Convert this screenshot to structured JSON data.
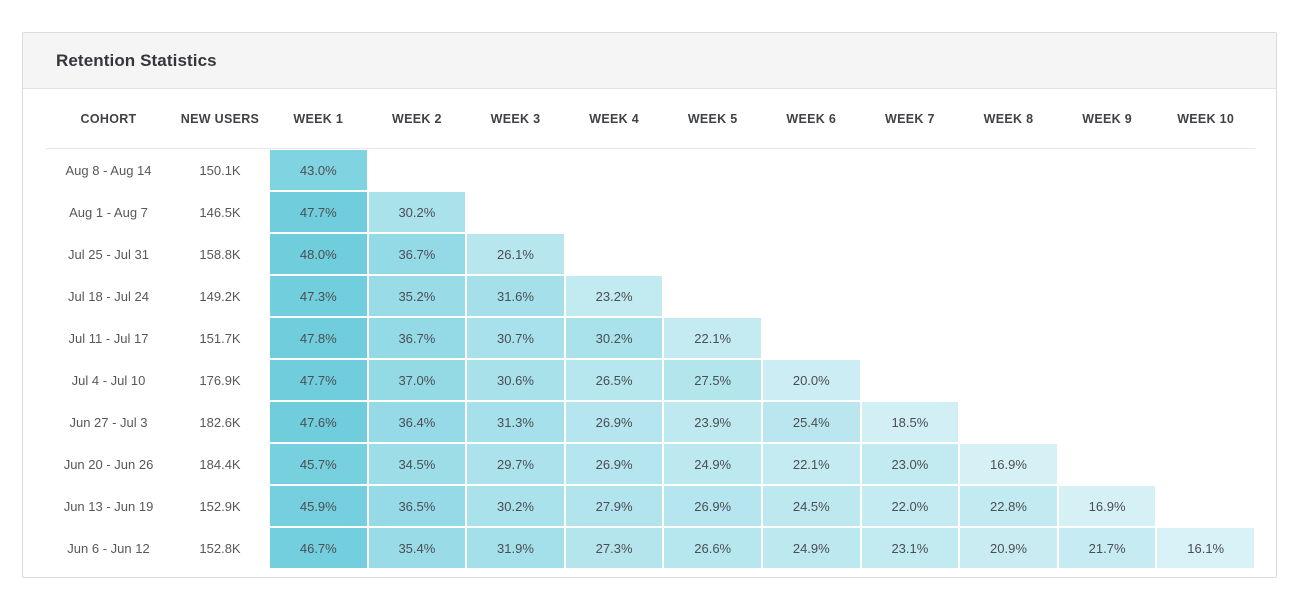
{
  "chart_data": {
    "type": "heatmap",
    "title": "Retention Statistics",
    "columns": [
      "COHORT",
      "NEW USERS",
      "WEEK 1",
      "WEEK 2",
      "WEEK 3",
      "WEEK 4",
      "WEEK 5",
      "WEEK 6",
      "WEEK 7",
      "WEEK 8",
      "WEEK 9",
      "WEEK 10"
    ],
    "value_unit": "%",
    "cohorts": [
      {
        "cohort": "Aug 8 - Aug 14",
        "new_users": "150.1K",
        "retention_pct": [
          43.0
        ]
      },
      {
        "cohort": "Aug 1 - Aug 7",
        "new_users": "146.5K",
        "retention_pct": [
          47.7,
          30.2
        ]
      },
      {
        "cohort": "Jul 25 - Jul 31",
        "new_users": "158.8K",
        "retention_pct": [
          48.0,
          36.7,
          26.1
        ]
      },
      {
        "cohort": "Jul 18 - Jul 24",
        "new_users": "149.2K",
        "retention_pct": [
          47.3,
          35.2,
          31.6,
          23.2
        ]
      },
      {
        "cohort": "Jul 11 - Jul 17",
        "new_users": "151.7K",
        "retention_pct": [
          47.8,
          36.7,
          30.7,
          30.2,
          22.1
        ]
      },
      {
        "cohort": "Jul 4 - Jul 10",
        "new_users": "176.9K",
        "retention_pct": [
          47.7,
          37.0,
          30.6,
          26.5,
          27.5,
          20.0
        ]
      },
      {
        "cohort": "Jun 27 - Jul 3",
        "new_users": "182.6K",
        "retention_pct": [
          47.6,
          36.4,
          31.3,
          26.9,
          23.9,
          25.4,
          18.5
        ]
      },
      {
        "cohort": "Jun 20 - Jun 26",
        "new_users": "184.4K",
        "retention_pct": [
          45.7,
          34.5,
          29.7,
          26.9,
          24.9,
          22.1,
          23.0,
          16.9
        ]
      },
      {
        "cohort": "Jun 13 - Jun 19",
        "new_users": "152.9K",
        "retention_pct": [
          45.9,
          36.5,
          30.2,
          27.9,
          26.9,
          24.5,
          22.0,
          22.8,
          16.9
        ]
      },
      {
        "cohort": "Jun 6 - Jun 12",
        "new_users": "152.8K",
        "retention_pct": [
          46.7,
          35.4,
          31.9,
          27.3,
          26.6,
          24.9,
          23.1,
          20.9,
          21.7,
          16.1
        ]
      }
    ],
    "color_scale": {
      "min_value": 16,
      "max_value": 48,
      "min_color": "#d9f2f7",
      "max_color": "#6fcddc"
    },
    "layout": {
      "grid": "off",
      "legend": "none",
      "week_columns": 10
    }
  }
}
